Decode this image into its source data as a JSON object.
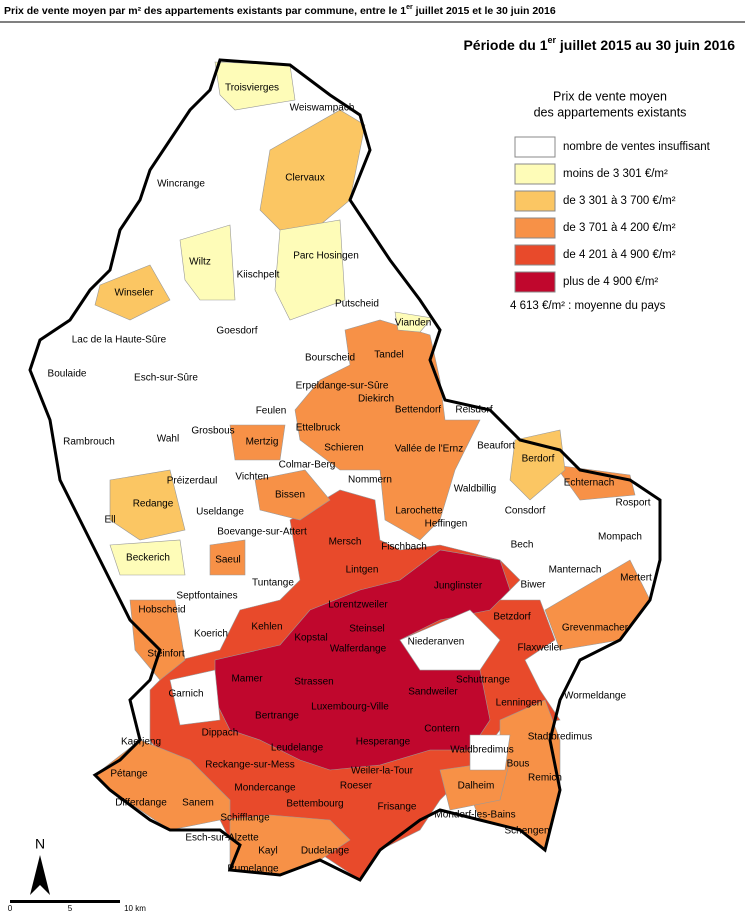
{
  "header": {
    "title": [
      "Prix de vente moyen par m² des appartements existants par commune, entre le 1",
      "er",
      " juillet 2015 et le 30 juin 2016"
    ],
    "subtitle": [
      "Période du 1",
      "er",
      " juillet 2015 au 30 juin 2016"
    ]
  },
  "legend": {
    "title": [
      "Prix de vente moyen",
      "des appartements existants"
    ],
    "entries": [
      {
        "label": "nombre de ventes insuffisant",
        "color": "#ffffff"
      },
      {
        "label": "moins de 3 301 €/m²",
        "color": "#fefcb8"
      },
      {
        "label": "de 3 301 à 3 700 €/m²",
        "color": "#fbc663"
      },
      {
        "label": "de 3 701 à 4 200 €/m²",
        "color": "#f79147"
      },
      {
        "label": "de 4 201 à 4 900 €/m²",
        "color": "#e84a2b"
      },
      {
        "label": "plus de 4 900 €/m²",
        "color": "#c0072d"
      }
    ],
    "note": "4 613 €/m² : moyenne du pays"
  },
  "communes": [
    "Troisvierges",
    "Weiswampach",
    "Wincrange",
    "Clervaux",
    "Wiltz",
    "Kiischpelt",
    "Parc Hosingen",
    "Winseler",
    "Putscheid",
    "Vianden",
    "Goesdorf",
    "Lac de la Haute-Sûre",
    "Tandel",
    "Bourscheid",
    "Boulaide",
    "Esch-sur-Sûre",
    "Erpeldange-sur-Sûre",
    "Diekirch",
    "Feulen",
    "Bettendorf",
    "Reisdorf",
    "Grosbous",
    "Ettelbruck",
    "Rambrouch",
    "Wahl",
    "Mertzig",
    "Schieren",
    "Vallée de l'Ernz",
    "Beaufort",
    "Berdorf",
    "Préizerdaul",
    "Vichten",
    "Colmar-Berg",
    "Nommern",
    "Waldbillig",
    "Echternach",
    "Bissen",
    "Redange",
    "Useldange",
    "Larochette",
    "Rosport",
    "Ell",
    "Consdorf",
    "Boevange-sur-Attert",
    "Heffingen",
    "Mersch",
    "Fischbach",
    "Bech",
    "Mompach",
    "Beckerich",
    "Saeul",
    "Manternach",
    "Lintgen",
    "Junglinster",
    "Biwer",
    "Mertert",
    "Tuntange",
    "Septfontaines",
    "Lorentzweiler",
    "Hobscheid",
    "Betzdorf",
    "Grevenmacher",
    "Kehlen",
    "Koerich",
    "Kopstal",
    "Steinsel",
    "Niederanven",
    "Walferdange",
    "Steinfort",
    "Flaxweiler",
    "Schuttrange",
    "Garnich",
    "Mamer",
    "Strassen",
    "Sandweiler",
    "Lenningen",
    "Wormeldange",
    "Bertrange",
    "Luxembourg-Ville",
    "Contern",
    "Stadtbredimus",
    "Kaerjeng",
    "Dippach",
    "Leudelange",
    "Hesperange",
    "Waldbredimus",
    "Bous",
    "Pétange",
    "Reckange-sur-Mess",
    "Weiler-la-Tour",
    "Remich",
    "Dalheim",
    "Differdange",
    "Sanem",
    "Mondercange",
    "Roeser",
    "Bettembourg",
    "Frisange",
    "Mondorf-les-Bains",
    "Schengen",
    "Schifflange",
    "Esch-sur-Alzette",
    "Kayl",
    "Dudelange",
    "Rumelange"
  ],
  "scale": {
    "north": "N",
    "ticks": [
      "0",
      "5",
      "10 km"
    ]
  }
}
